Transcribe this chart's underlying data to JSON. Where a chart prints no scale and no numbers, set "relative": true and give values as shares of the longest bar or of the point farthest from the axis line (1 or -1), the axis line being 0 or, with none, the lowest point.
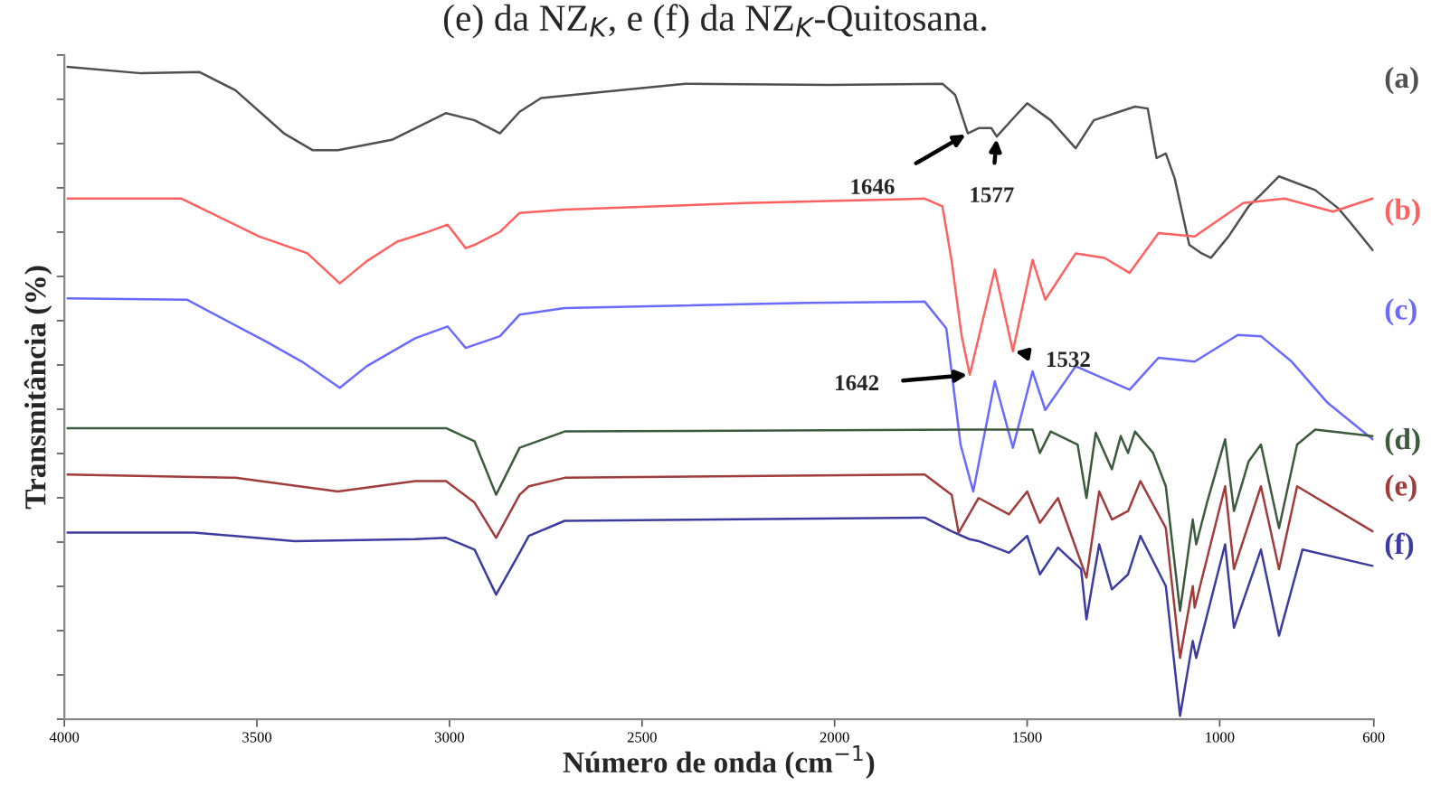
{
  "chart_data": {
    "type": "line",
    "title": "(e) da NZ$_{K}$, e (f) da NZ$_{K}$-Quitosana.",
    "xlabel": "Número de onda (cm$^{−1}$)",
    "ylabel": "Transmitância (%)",
    "relative": true,
    "xlim": [
      4000,
      600
    ],
    "xticks": [
      4000,
      3500,
      3000,
      2500,
      2000,
      1500,
      1000,
      600
    ],
    "tick_labels": "x",
    "grid": false,
    "legend": false,
    "line_style": "solid",
    "marker": "none",
    "series": [
      {
        "name": "(a)",
        "color": "#505050",
        "x": [
          3992,
          3800,
          3650,
          3556,
          3430,
          3355,
          3290,
          3150,
          3009,
          2935,
          2869,
          2818,
          2762,
          2388,
          2014,
          1720,
          1687,
          1654,
          1626,
          1593,
          1579,
          1533,
          1500,
          1439,
          1374,
          1327,
          1220,
          1187,
          1164,
          1140,
          1117,
          1079,
          1047,
          1023,
          977,
          925,
          893,
          846,
          752,
          692,
          659,
          603
        ],
        "values": [
          1.0,
          0.99,
          0.992,
          0.964,
          0.898,
          0.872,
          0.872,
          0.888,
          0.929,
          0.918,
          0.898,
          0.931,
          0.952,
          0.974,
          0.972,
          0.974,
          0.957,
          0.898,
          0.906,
          0.906,
          0.893,
          0.923,
          0.944,
          0.918,
          0.875,
          0.918,
          0.939,
          0.936,
          0.86,
          0.867,
          0.829,
          0.727,
          0.714,
          0.707,
          0.74,
          0.786,
          0.804,
          0.832,
          0.811,
          0.783,
          0.76,
          0.719
        ]
      },
      {
        "name": "(b)",
        "color": "#ff6060",
        "x": [
          3992,
          3696,
          3495,
          3369,
          3285,
          3215,
          3136,
          3056,
          3005,
          2958,
          2935,
          2869,
          2818,
          2701,
          2234,
          1766,
          1720,
          1696,
          1670,
          1649,
          1584,
          1537,
          1486,
          1453,
          1374,
          1299,
          1234,
          1159,
          1065,
          939,
          832,
          706,
          603
        ],
        "values": [
          0.798,
          0.798,
          0.74,
          0.714,
          0.668,
          0.702,
          0.732,
          0.747,
          0.758,
          0.722,
          0.727,
          0.747,
          0.776,
          0.781,
          0.791,
          0.798,
          0.786,
          0.702,
          0.587,
          0.528,
          0.689,
          0.564,
          0.704,
          0.643,
          0.714,
          0.707,
          0.684,
          0.745,
          0.74,
          0.791,
          0.798,
          0.778,
          0.798
        ]
      },
      {
        "name": "(c)",
        "color": "#6a6aff",
        "x": [
          3992,
          3682,
          3477,
          3383,
          3285,
          3215,
          3089,
          3005,
          2958,
          2869,
          2818,
          2701,
          2075,
          1766,
          1710,
          1673,
          1640,
          1584,
          1537,
          1486,
          1453,
          1374,
          1234,
          1159,
          1065,
          953,
          893,
          813,
          720,
          603
        ],
        "values": [
          0.645,
          0.643,
          0.579,
          0.548,
          0.508,
          0.541,
          0.584,
          0.602,
          0.569,
          0.587,
          0.62,
          0.63,
          0.638,
          0.64,
          0.599,
          0.421,
          0.349,
          0.518,
          0.416,
          0.533,
          0.474,
          0.541,
          0.505,
          0.554,
          0.548,
          0.589,
          0.587,
          0.548,
          0.485,
          0.429
        ]
      },
      {
        "name": "(d)",
        "color": "#3c5a3c",
        "x": [
          3992,
          3009,
          2935,
          2879,
          2818,
          2701,
          1654,
          1486,
          1467,
          1439,
          1369,
          1346,
          1322,
          1280,
          1257,
          1238,
          1220,
          1173,
          1140,
          1103,
          1070,
          1061,
          1033,
          986,
          963,
          925,
          893,
          846,
          799,
          752,
          603
        ],
        "values": [
          0.446,
          0.446,
          0.426,
          0.344,
          0.416,
          0.441,
          0.444,
          0.444,
          0.408,
          0.441,
          0.421,
          0.339,
          0.439,
          0.383,
          0.434,
          0.408,
          0.441,
          0.408,
          0.357,
          0.166,
          0.306,
          0.268,
          0.332,
          0.429,
          0.319,
          0.395,
          0.421,
          0.293,
          0.421,
          0.444,
          0.434
        ]
      },
      {
        "name": "(e)",
        "color": "#a03c3c",
        "x": [
          3992,
          3556,
          3290,
          3089,
          3009,
          2935,
          2879,
          2818,
          2794,
          2701,
          1766,
          1696,
          1678,
          1626,
          1547,
          1500,
          1467,
          1420,
          1346,
          1313,
          1280,
          1238,
          1206,
          1140,
          1103,
          1070,
          1065,
          986,
          963,
          893,
          846,
          799,
          603
        ],
        "values": [
          0.375,
          0.37,
          0.349,
          0.365,
          0.365,
          0.332,
          0.278,
          0.344,
          0.357,
          0.37,
          0.375,
          0.344,
          0.286,
          0.339,
          0.314,
          0.349,
          0.301,
          0.339,
          0.217,
          0.349,
          0.306,
          0.319,
          0.365,
          0.293,
          0.094,
          0.204,
          0.171,
          0.357,
          0.23,
          0.357,
          0.23,
          0.357,
          0.288
        ]
      },
      {
        "name": "(f)",
        "color": "#3c3ca0",
        "x": [
          3992,
          3664,
          3402,
          3089,
          3009,
          2935,
          2879,
          2818,
          2794,
          2701,
          1766,
          1696,
          1650,
          1626,
          1547,
          1500,
          1467,
          1420,
          1360,
          1346,
          1313,
          1280,
          1238,
          1206,
          1140,
          1103,
          1070,
          1061,
          986,
          963,
          893,
          846,
          785,
          603
        ],
        "values": [
          0.286,
          0.286,
          0.273,
          0.276,
          0.278,
          0.26,
          0.191,
          0.255,
          0.281,
          0.304,
          0.309,
          0.288,
          0.276,
          0.273,
          0.255,
          0.281,
          0.222,
          0.263,
          0.23,
          0.153,
          0.268,
          0.199,
          0.222,
          0.281,
          0.204,
          0.005,
          0.12,
          0.094,
          0.268,
          0.14,
          0.26,
          0.128,
          0.26,
          0.235
        ]
      }
    ],
    "annotations": [
      {
        "text": "1646",
        "x": 1654,
        "y": 0.898
      },
      {
        "text": "1577",
        "x": 1579,
        "y": 0.893
      },
      {
        "text": "1642",
        "x": 1649,
        "y": 0.528
      },
      {
        "text": "1532",
        "x": 1537,
        "y": 0.564
      }
    ]
  }
}
